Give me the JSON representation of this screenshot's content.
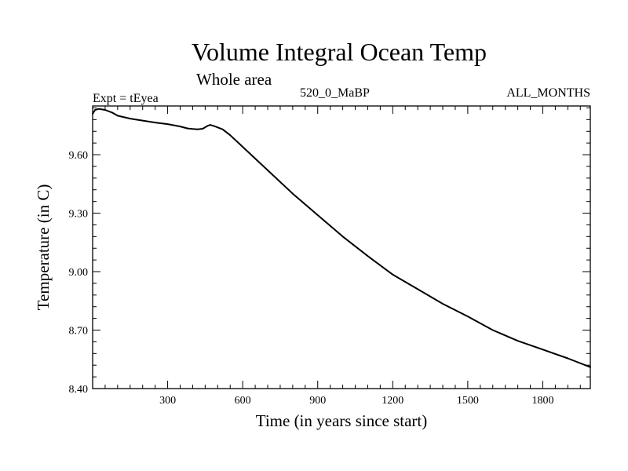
{
  "chart_data": {
    "type": "line",
    "title": "Volume Integral Ocean Temp",
    "subtitle": "Whole area",
    "left_label": "Expt = tEyea",
    "center_label": "520_0_MaBP",
    "right_label": "ALL_MONTHS",
    "xlabel": "Time (in years since start)",
    "ylabel": "Temperature (in C)",
    "xlim": [
      0,
      1990
    ],
    "ylim": [
      8.4,
      9.85
    ],
    "xticks": [
      300,
      600,
      900,
      1200,
      1500,
      1800
    ],
    "xtick_labels": [
      "300",
      "600",
      "900",
      "1200",
      "1500",
      "1800"
    ],
    "yticks": [
      8.4,
      8.7,
      9.0,
      9.3,
      9.6
    ],
    "ytick_labels": [
      "8.40",
      "8.70",
      "9.00",
      "9.30",
      "9.60"
    ],
    "series": [
      {
        "name": "Volume Integral Ocean Temp",
        "color": "#000000",
        "x": [
          0,
          10,
          25,
          50,
          80,
          100,
          150,
          200,
          250,
          300,
          350,
          380,
          400,
          420,
          440,
          460,
          470,
          490,
          520,
          550,
          600,
          650,
          700,
          800,
          900,
          1000,
          1100,
          1200,
          1300,
          1400,
          1500,
          1600,
          1700,
          1800,
          1900,
          1990
        ],
        "y": [
          9.81,
          9.83,
          9.835,
          9.83,
          9.815,
          9.8,
          9.785,
          9.775,
          9.765,
          9.757,
          9.745,
          9.735,
          9.732,
          9.73,
          9.733,
          9.748,
          9.753,
          9.745,
          9.73,
          9.7,
          9.64,
          9.58,
          9.52,
          9.4,
          9.29,
          9.18,
          9.08,
          8.985,
          8.91,
          8.835,
          8.77,
          8.7,
          8.645,
          8.6,
          8.555,
          8.51
        ]
      }
    ]
  }
}
